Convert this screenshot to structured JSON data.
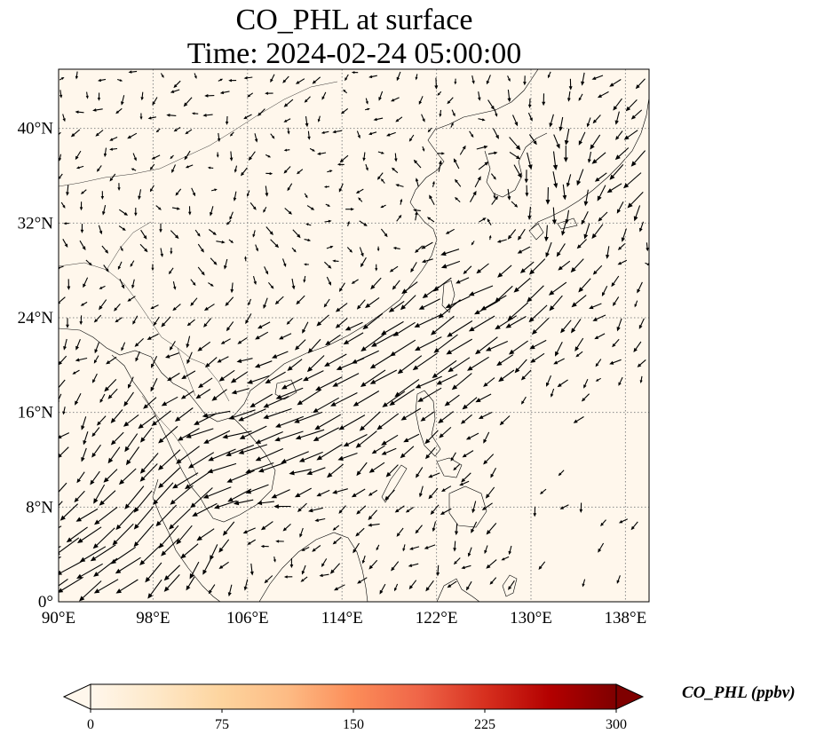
{
  "title": {
    "line1": "CO_PHL at surface",
    "line2": "Time: 2024-02-24 05:00:00"
  },
  "map": {
    "projection": "PlateCarree",
    "lon_range": [
      90,
      140
    ],
    "lat_range": [
      0,
      45
    ],
    "lon_ticks": [
      "90°E",
      "98°E",
      "106°E",
      "114°E",
      "122°E",
      "130°E",
      "138°E"
    ],
    "lat_ticks": [
      "0°",
      "8°N",
      "16°N",
      "24°N",
      "32°N",
      "40°N"
    ],
    "gridlines": true,
    "field": "CO_PHL",
    "field_level_ppbv": "near 0 everywhere",
    "overlay": "surface wind vectors"
  },
  "colorbar": {
    "label": "CO_PHL (ppbv)",
    "min": 0,
    "max": 300,
    "ticks": [
      "0",
      "75",
      "150",
      "225",
      "300"
    ],
    "colormap": "OrRd",
    "extend": "both",
    "colors": [
      "#fff7ec",
      "#fee8c8",
      "#fdd49e",
      "#fdbb84",
      "#fc8d59",
      "#ef6548",
      "#d7301f",
      "#b30000",
      "#7f0000"
    ]
  },
  "colors": {
    "background_field": "#fff7ec",
    "coastline": "#000000",
    "arrows": "#000000",
    "gridline": "#888888"
  }
}
